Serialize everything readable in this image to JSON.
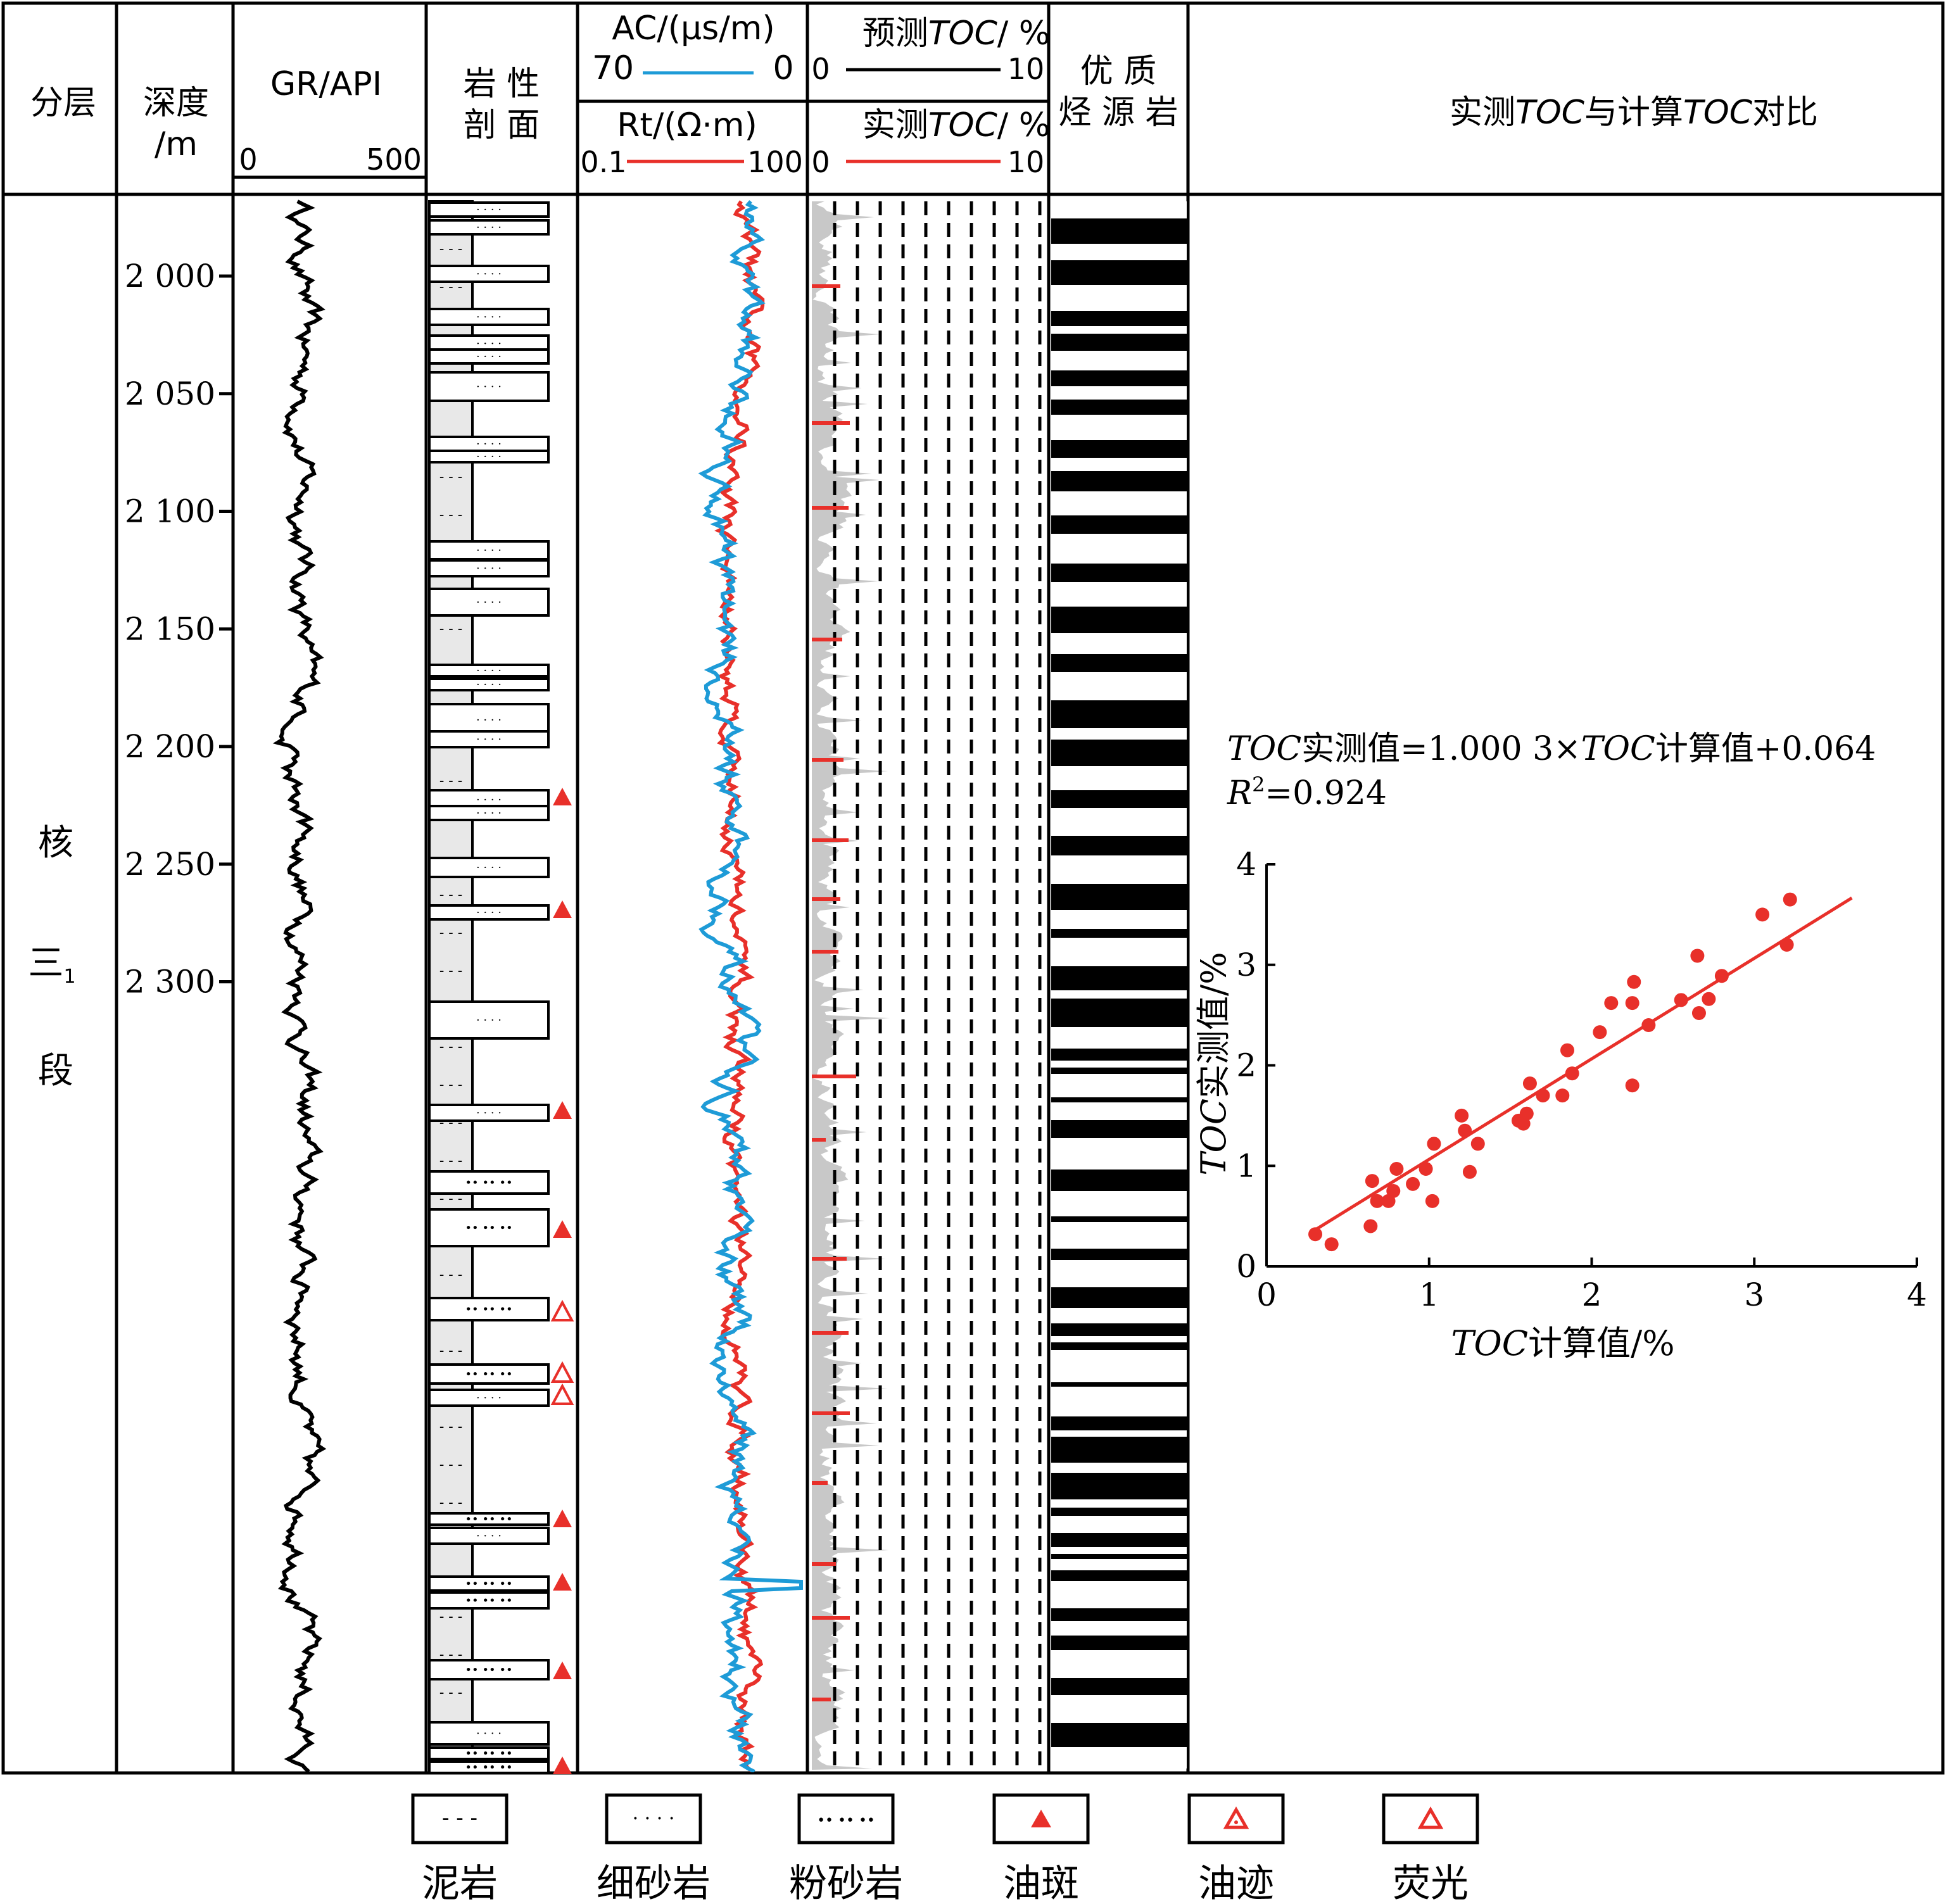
{
  "header": {
    "layer": "分层",
    "depth": [
      "深度",
      "/m"
    ],
    "gr": {
      "title": "GR/API",
      "min": "0",
      "max": "500"
    },
    "lith": [
      "岩 性",
      "剖 面"
    ],
    "ac": {
      "title": "AC/(μs/m)",
      "left": "70",
      "right": "0"
    },
    "rt": {
      "title": "Rt/(Ω·m)",
      "left": "0.1",
      "right": "100"
    },
    "pred_toc": {
      "title_a": "预测",
      "title_b": "TOC",
      "title_c": "/ %",
      "left": "0",
      "right": "10"
    },
    "meas_toc": {
      "title_a": "实测",
      "title_b": "TOC",
      "title_c": "/ %",
      "left": "0",
      "right": "10"
    },
    "source_rock": [
      "优 质",
      "烃 源 岩"
    ],
    "compare": {
      "a": "实测",
      "b": "TOC",
      "c": "与计算",
      "d": "TOC",
      "e": "对比"
    }
  },
  "formation": {
    "c1": "核",
    "c2": "三",
    "sub": "1",
    "c3": "段"
  },
  "depth_ticks": [
    "2 000",
    "2 050",
    "2 100",
    "2 150",
    "2 200",
    "2 250",
    "2 300"
  ],
  "equation": {
    "a": "TOC",
    "b": "实测值=1.000 3×",
    "c": "TOC",
    "d": "计算值+0.064",
    "r2_r": "R",
    "r2_sup": "2",
    "r2_val": "=0.924"
  },
  "legend": [
    {
      "label": "泥岩",
      "pattern": "mudstone"
    },
    {
      "label": "细砂岩",
      "pattern": "fine-sandstone"
    },
    {
      "label": "粉砂岩",
      "pattern": "siltstone"
    },
    {
      "label": "油斑",
      "pattern": "oil-spot"
    },
    {
      "label": "油迹",
      "pattern": "oil-trace"
    },
    {
      "label": "荧光",
      "pattern": "fluorescence"
    }
  ],
  "colors": {
    "ac": "#1E9BD7",
    "rt": "#E8302A",
    "pred": "#000000",
    "meas": "#E8302A",
    "fill": "#C8C8C8"
  },
  "chart_data": {
    "type": "scatter",
    "xlabel_a": "TOC",
    "xlabel_b": "计算值/%",
    "ylabel_a": "TOC",
    "ylabel_b": "实测值/%",
    "xlim": [
      0,
      4
    ],
    "ylim": [
      0,
      4
    ],
    "xticks": [
      "0",
      "1",
      "2",
      "3",
      "4"
    ],
    "yticks": [
      "0",
      "1",
      "2",
      "3",
      "4"
    ],
    "fit": {
      "slope": 1.0003,
      "intercept": 0.064,
      "x_range": [
        0.3,
        3.6
      ]
    },
    "x": [
      0.3,
      0.4,
      0.65,
      0.64,
      0.68,
      0.75,
      0.78,
      0.8,
      0.9,
      0.98,
      1.02,
      1.03,
      1.2,
      1.22,
      1.25,
      1.3,
      1.55,
      1.58,
      1.6,
      1.62,
      1.7,
      1.82,
      1.85,
      1.88,
      2.05,
      2.12,
      2.25,
      2.26,
      2.25,
      2.35,
      2.55,
      2.65,
      2.66,
      2.72,
      2.8,
      3.05,
      3.2,
      3.22
    ],
    "y": [
      0.32,
      0.22,
      0.85,
      0.4,
      0.65,
      0.65,
      0.75,
      0.97,
      0.82,
      0.97,
      0.65,
      1.22,
      1.5,
      1.35,
      0.94,
      1.22,
      1.45,
      1.42,
      1.52,
      1.82,
      1.7,
      1.7,
      2.15,
      1.92,
      2.33,
      2.62,
      2.62,
      2.83,
      1.8,
      2.4,
      2.65,
      3.09,
      2.52,
      2.66,
      2.89,
      3.5,
      3.2,
      3.65
    ]
  }
}
